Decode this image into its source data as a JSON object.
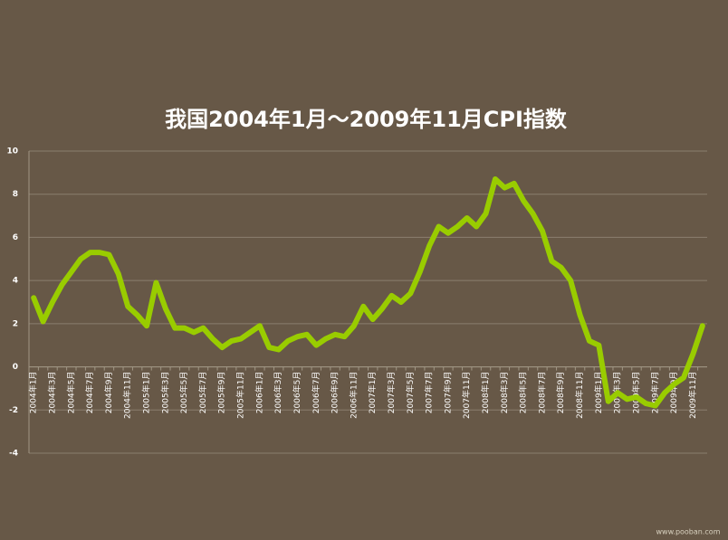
{
  "chart_data": {
    "type": "line",
    "title": "我国2004年1月～2009年11月CPI指数",
    "categories": [
      "2004年1月",
      null,
      "2004年3月",
      null,
      "2004年5月",
      null,
      "2004年7月",
      null,
      "2004年9月",
      null,
      "2004年11月",
      null,
      "2005年1月",
      null,
      "2005年3月",
      null,
      "2005年5月",
      null,
      "2005年7月",
      null,
      "2005年9月",
      null,
      "2005年11月",
      null,
      "2006年1月",
      null,
      "2006年3月",
      null,
      "2006年5月",
      null,
      "2006年7月",
      null,
      "2006年9月",
      null,
      "2006年11月",
      null,
      "2007年1月",
      null,
      "2007年3月",
      null,
      "2007年5月",
      null,
      "2007年7月",
      null,
      "2007年9月",
      null,
      "2007年11月",
      null,
      "2008年1月",
      null,
      "2008年3月",
      null,
      "2008年5月",
      null,
      "2008年7月",
      null,
      "2008年9月",
      null,
      "2008年11月",
      null,
      "2009年1月",
      null,
      "2009年3月",
      null,
      "2009年5月",
      null,
      "2009年7月",
      null,
      "2009年9月",
      null,
      "2009年11月",
      null
    ],
    "series": [
      {
        "name": "CPI",
        "color": "#99cc00",
        "values": [
          3.2,
          2.1,
          3.0,
          3.8,
          4.4,
          5.0,
          5.3,
          5.3,
          5.2,
          4.3,
          2.8,
          2.4,
          1.9,
          3.9,
          2.7,
          1.8,
          1.8,
          1.6,
          1.8,
          1.3,
          0.9,
          1.2,
          1.3,
          1.6,
          1.9,
          0.9,
          0.8,
          1.2,
          1.4,
          1.5,
          1.0,
          1.3,
          1.5,
          1.4,
          1.9,
          2.8,
          2.2,
          2.7,
          3.3,
          3.0,
          3.4,
          4.4,
          5.6,
          6.5,
          6.2,
          6.5,
          6.9,
          6.5,
          7.1,
          8.7,
          8.3,
          8.5,
          7.7,
          7.1,
          6.3,
          4.9,
          4.6,
          4.0,
          2.4,
          1.2,
          1.0,
          -1.6,
          -1.2,
          -1.5,
          -1.4,
          -1.7,
          -1.8,
          -1.2,
          -0.8,
          -0.5,
          0.6,
          1.9
        ]
      }
    ],
    "ylim": [
      -4,
      10
    ],
    "yticks": [
      10,
      8,
      6,
      4,
      2,
      0,
      -2,
      -4
    ],
    "grid": true,
    "watermark": "www.pooban.com"
  }
}
